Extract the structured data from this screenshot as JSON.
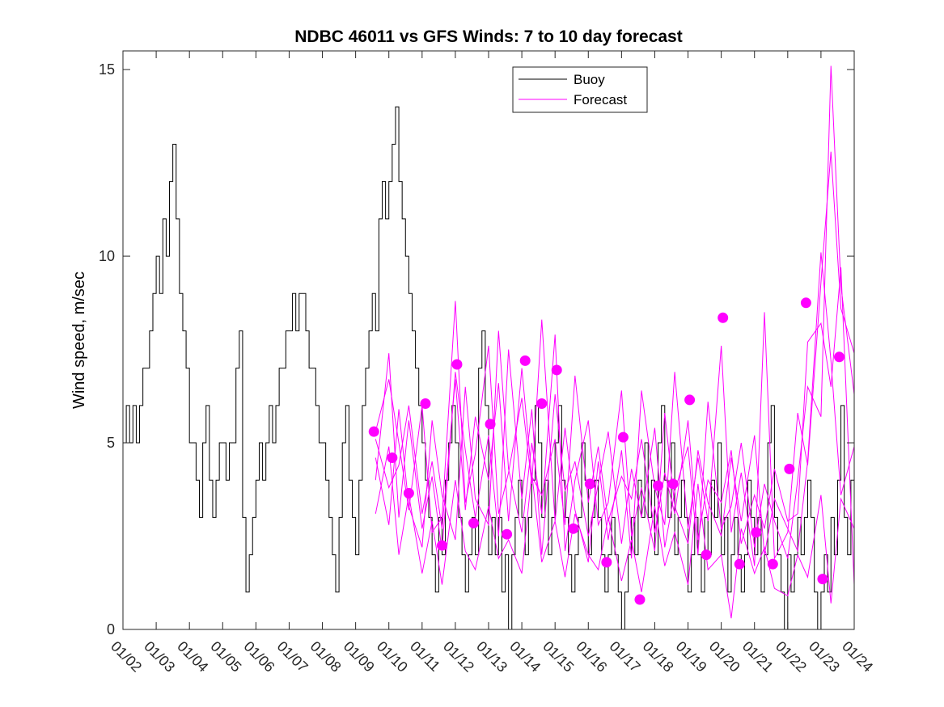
{
  "chart_data": {
    "type": "line",
    "title": "NDBC 46011 vs GFS Winds: 7 to 10 day forecast",
    "xlabel": "",
    "ylabel": "Wind speed, m/sec",
    "xlim": [
      0,
      22
    ],
    "ylim": [
      0,
      15.5
    ],
    "yticks": [
      0,
      5,
      10,
      15
    ],
    "ytick_labels": [
      "0",
      "5",
      "10",
      "15"
    ],
    "xtick_labels": [
      "01/02",
      "01/03",
      "01/04",
      "01/05",
      "01/06",
      "01/07",
      "01/08",
      "01/09",
      "01/10",
      "01/11",
      "01/12",
      "01/13",
      "01/14",
      "01/15",
      "01/16",
      "01/17",
      "01/18",
      "01/19",
      "01/20",
      "01/21",
      "01/22",
      "01/23",
      "01/24"
    ],
    "legend": {
      "position": "top-right-inner",
      "entries": [
        "Buoy",
        "Forecast"
      ]
    },
    "colors": {
      "buoy": "#000000",
      "forecast": "#ff00ff"
    },
    "series": [
      {
        "name": "Buoy",
        "x": [
          0,
          0.1,
          0.2,
          0.3,
          0.4,
          0.5,
          0.6,
          0.7,
          0.8,
          0.9,
          1.0,
          1.1,
          1.2,
          1.3,
          1.4,
          1.5,
          1.6,
          1.7,
          1.8,
          1.9,
          2.0,
          2.1,
          2.2,
          2.3,
          2.4,
          2.5,
          2.6,
          2.7,
          2.8,
          2.9,
          3.0,
          3.1,
          3.2,
          3.3,
          3.4,
          3.5,
          3.6,
          3.7,
          3.8,
          3.9,
          4.0,
          4.1,
          4.2,
          4.3,
          4.4,
          4.5,
          4.6,
          4.7,
          4.8,
          4.9,
          5.0,
          5.1,
          5.2,
          5.3,
          5.4,
          5.5,
          5.6,
          5.7,
          5.8,
          5.9,
          6.0,
          6.1,
          6.2,
          6.3,
          6.4,
          6.5,
          6.6,
          6.7,
          6.8,
          6.9,
          7.0,
          7.1,
          7.2,
          7.3,
          7.4,
          7.5,
          7.6,
          7.7,
          7.8,
          7.9,
          8.0,
          8.1,
          8.2,
          8.3,
          8.4,
          8.5,
          8.6,
          8.7,
          8.8,
          8.9,
          9.0,
          9.1,
          9.2,
          9.3,
          9.4,
          9.5,
          9.6,
          9.7,
          9.8,
          9.9,
          10.0,
          10.1,
          10.2,
          10.3,
          10.4,
          10.5,
          10.6,
          10.7,
          10.8,
          10.9,
          11.0,
          11.1,
          11.2,
          11.3,
          11.4,
          11.5,
          11.6,
          11.7,
          11.8,
          11.9,
          12.0,
          12.1,
          12.2,
          12.3,
          12.4,
          12.5,
          12.6,
          12.7,
          12.8,
          12.9,
          13.0,
          13.1,
          13.2,
          13.3,
          13.4,
          13.5,
          13.6,
          13.7,
          13.8,
          13.9,
          14.0,
          14.1,
          14.2,
          14.3,
          14.4,
          14.5,
          14.6,
          14.7,
          14.8,
          14.9,
          15.0,
          15.1,
          15.2,
          15.3,
          15.4,
          15.5,
          15.6,
          15.7,
          15.8,
          15.9,
          16.0,
          16.1,
          16.2,
          16.3,
          16.4,
          16.5,
          16.6,
          16.7,
          16.8,
          16.9,
          17.0,
          17.1,
          17.2,
          17.3,
          17.4,
          17.5,
          17.6,
          17.7,
          17.8,
          17.9,
          18.0,
          18.1,
          18.2,
          18.3,
          18.4,
          18.5,
          18.6,
          18.7,
          18.8,
          18.9,
          19.0,
          19.1,
          19.2,
          19.3,
          19.4,
          19.5,
          19.6,
          19.7,
          19.8,
          19.9,
          20.0,
          20.1,
          20.2,
          20.3,
          20.4,
          20.5,
          20.6,
          20.7,
          20.8,
          20.9,
          21.0,
          21.1,
          21.2,
          21.3,
          21.4,
          21.5,
          21.6,
          21.7,
          21.8,
          21.9,
          22.0
        ],
        "y": [
          5,
          6,
          5,
          6,
          5,
          6,
          7,
          7,
          8,
          9,
          10,
          9,
          11,
          10,
          12,
          13,
          11,
          9,
          8,
          7,
          5,
          5,
          4,
          3,
          5,
          6,
          4,
          3,
          4,
          5,
          5,
          4,
          5,
          5,
          7,
          8,
          3,
          1,
          2,
          3,
          4,
          5,
          4,
          5,
          6,
          5,
          6,
          7,
          7,
          8,
          8,
          9,
          8,
          9,
          9,
          8,
          7,
          7,
          6,
          5,
          5,
          4,
          3,
          2,
          1,
          3,
          5,
          6,
          4,
          3,
          2,
          4,
          6,
          7,
          8,
          9,
          8,
          11,
          12,
          11,
          12,
          13,
          14,
          12,
          11,
          10,
          9,
          8,
          7,
          6,
          5,
          4,
          3,
          2,
          1,
          3,
          2,
          4,
          5,
          6,
          5,
          3,
          2,
          1,
          2,
          3,
          2,
          7,
          8,
          6,
          2,
          3,
          2,
          3,
          1,
          2,
          0,
          2,
          3,
          4,
          3,
          2,
          3,
          4,
          6,
          5,
          3,
          4,
          2,
          3,
          5,
          6,
          4,
          3,
          2,
          1,
          2,
          3,
          5,
          4,
          2,
          3,
          4,
          3,
          2,
          1,
          2,
          3,
          2,
          1,
          0,
          1,
          2,
          3,
          2,
          4,
          3,
          5,
          3,
          4,
          2,
          5,
          6,
          4,
          3,
          5,
          2,
          3,
          4,
          3,
          1,
          2,
          3,
          2,
          1,
          3,
          2,
          4,
          3,
          5,
          2,
          3,
          1,
          2,
          3,
          2,
          1,
          2,
          4,
          3,
          2,
          3,
          1,
          2,
          5,
          6,
          3,
          2,
          1,
          0,
          2,
          1,
          2,
          3,
          2,
          3,
          4,
          3,
          1,
          0,
          1,
          2,
          1,
          3,
          2,
          4,
          6,
          3,
          2,
          4,
          5
        ]
      },
      {
        "name": "Forecast",
        "markers": {
          "x": [
            7.55,
            8.1,
            8.6,
            9.1,
            9.6,
            10.05,
            10.55,
            11.05,
            11.55,
            12.1,
            12.6,
            13.05,
            13.55,
            14.05,
            14.55,
            15.05,
            15.55,
            16.1,
            16.55,
            17.05,
            17.55,
            18.05,
            18.55,
            19.05,
            19.55,
            20.05,
            20.55,
            21.05,
            21.55
          ],
          "y": [
            5.3,
            4.6,
            3.65,
            6.05,
            2.25,
            7.1,
            2.85,
            5.5,
            2.55,
            7.2,
            6.05,
            6.95,
            2.7,
            3.9,
            1.8,
            5.15,
            0.8,
            3.85,
            3.9,
            6.15,
            2.0,
            8.35,
            1.75,
            2.6,
            1.75,
            4.3,
            8.75,
            1.35,
            7.3
          ]
        },
        "ensemble_lines": [
          {
            "x": [
              7.6,
              8.0,
              8.3,
              8.6,
              9.0,
              9.3,
              9.6,
              10.0,
              10.3,
              10.6,
              11.0,
              11.3,
              11.6,
              12.0,
              12.3,
              12.6,
              13.0,
              13.3,
              13.6,
              14.0,
              14.3,
              14.6,
              15.0,
              15.3,
              15.6,
              16.0,
              16.3,
              16.6,
              17.0,
              17.3,
              17.6,
              18.0,
              18.3,
              18.6,
              19.0,
              19.3,
              19.6,
              20.0,
              20.3,
              20.6,
              21.0,
              21.3,
              21.6,
              22.0
            ],
            "y": [
              5.3,
              6.7,
              5.0,
              3.2,
              6.0,
              2.6,
              3.0,
              8.8,
              3.4,
              4.7,
              7.6,
              3.1,
              4.2,
              6.2,
              3.9,
              8.3,
              2.9,
              5.4,
              3.2,
              1.8,
              4.5,
              2.4,
              4.8,
              1.9,
              6.4,
              3.8,
              2.8,
              6.9,
              2.7,
              4.6,
              2.9,
              7.6,
              2.6,
              4.2,
              1.7,
              8.5,
              1.9,
              2.6,
              5.8,
              4.4,
              9.3,
              12.8,
              8.6,
              7.4
            ]
          },
          {
            "x": [
              7.6,
              8.0,
              8.3,
              8.6,
              9.0,
              9.3,
              9.6,
              10.0,
              10.3,
              10.6,
              11.0,
              11.3,
              11.6,
              12.0,
              12.3,
              12.6,
              13.0,
              13.3,
              13.6,
              14.0,
              14.3,
              14.6,
              15.0,
              15.3,
              15.6,
              16.0,
              16.3,
              16.6,
              17.0,
              17.3,
              17.6,
              18.0,
              18.3,
              18.6,
              19.0,
              19.3,
              19.6,
              20.0,
              20.3,
              20.6,
              21.0,
              21.3,
              21.6,
              22.0
            ],
            "y": [
              4.0,
              7.4,
              3.0,
              5.6,
              2.7,
              4.1,
              2.1,
              6.9,
              4.8,
              3.0,
              5.2,
              2.5,
              7.5,
              3.5,
              5.9,
              2.0,
              6.3,
              3.7,
              4.5,
              2.5,
              3.9,
              5.3,
              2.3,
              4.3,
              3.0,
              5.4,
              2.2,
              3.7,
              4.9,
              2.0,
              6.1,
              2.7,
              3.3,
              5.0,
              2.2,
              3.9,
              2.9,
              1.9,
              4.0,
              6.5,
              5.7,
              15.1,
              9.2,
              6.3
            ]
          },
          {
            "x": [
              7.6,
              8.0,
              8.3,
              8.6,
              9.0,
              9.3,
              9.6,
              10.0,
              10.3,
              10.6,
              11.0,
              11.3,
              11.6,
              12.0,
              12.3,
              12.6,
              13.0,
              13.3,
              13.6,
              14.0,
              14.3,
              14.6,
              15.0,
              15.3,
              15.6,
              16.0,
              16.3,
              16.6,
              17.0,
              17.3,
              17.6,
              18.0,
              18.3,
              18.6,
              19.0,
              19.3,
              19.6,
              20.0,
              20.3,
              20.6,
              21.0,
              21.3,
              21.6,
              22.0
            ],
            "y": [
              4.6,
              2.8,
              5.9,
              3.3,
              2.2,
              5.6,
              3.6,
              2.4,
              6.5,
              3.5,
              2.8,
              8.0,
              4.3,
              2.6,
              5.0,
              3.1,
              7.9,
              2.1,
              4.0,
              5.6,
              2.8,
              3.4,
              6.4,
              2.5,
              3.8,
              2.1,
              5.8,
              3.3,
              2.3,
              4.8,
              3.4,
              2.5,
              4.6,
              2.9,
              5.2,
              2.0,
              3.5,
              2.7,
              2.1,
              4.5,
              10.1,
              7.2,
              3.6,
              4.9
            ]
          },
          {
            "x": [
              7.6,
              8.0,
              8.3,
              8.6,
              9.0,
              9.3,
              9.6,
              10.0,
              10.3,
              10.6,
              11.0,
              11.3,
              11.6,
              12.0,
              12.3,
              12.6,
              13.0,
              13.3,
              13.6,
              14.0,
              14.3,
              14.6,
              15.0,
              15.3,
              15.6,
              16.0,
              16.3,
              16.6,
              17.0,
              17.3,
              17.6,
              18.0,
              18.3,
              18.6,
              19.0,
              19.3,
              19.6,
              20.0,
              20.3,
              20.6,
              21.0,
              21.3,
              21.6,
              22.0
            ],
            "y": [
              3.1,
              4.9,
              2.0,
              3.6,
              1.5,
              2.9,
              1.2,
              4.0,
              2.1,
              1.6,
              3.3,
              1.9,
              2.4,
              1.5,
              4.2,
              1.8,
              2.9,
              1.4,
              3.1,
              2.0,
              1.6,
              3.0,
              1.3,
              2.4,
              1.0,
              3.3,
              1.7,
              2.6,
              1.2,
              3.9,
              1.6,
              2.0,
              0.3,
              2.7,
              1.5,
              2.2,
              1.1,
              0.9,
              2.0,
              1.4,
              3.6,
              0.7,
              3.5,
              2.7
            ]
          },
          {
            "x": [
              7.6,
              8.0,
              8.3,
              8.6,
              9.0,
              9.3,
              9.6,
              10.0,
              10.3,
              10.6,
              11.0,
              11.3,
              11.6,
              12.0,
              12.3,
              12.6,
              13.0,
              13.3,
              13.6,
              14.0,
              14.3,
              14.6,
              15.0,
              15.3,
              15.6,
              16.0,
              16.3,
              16.6,
              17.0,
              17.3,
              17.6,
              18.0,
              18.3,
              18.6,
              19.0,
              19.3,
              19.6,
              20.0,
              20.3,
              20.6,
              21.0,
              21.3,
              21.6,
              22.0
            ],
            "y": [
              5.1,
              3.8,
              4.4,
              6.0,
              3.1,
              4.5,
              2.7,
              6.7,
              3.2,
              5.7,
              4.0,
              6.6,
              2.9,
              7.0,
              4.1,
              3.6,
              5.1,
              2.8,
              6.8,
              3.4,
              4.9,
              2.9,
              4.1,
              3.5,
              5.1,
              2.6,
              4.2,
              3.1,
              5.6,
              2.4,
              4.0,
              3.4,
              4.8,
              2.3,
              3.6,
              2.7,
              4.3,
              2.9,
              3.1,
              7.7,
              8.2,
              6.5,
              9.7,
              1.2
            ]
          }
        ]
      }
    ]
  }
}
